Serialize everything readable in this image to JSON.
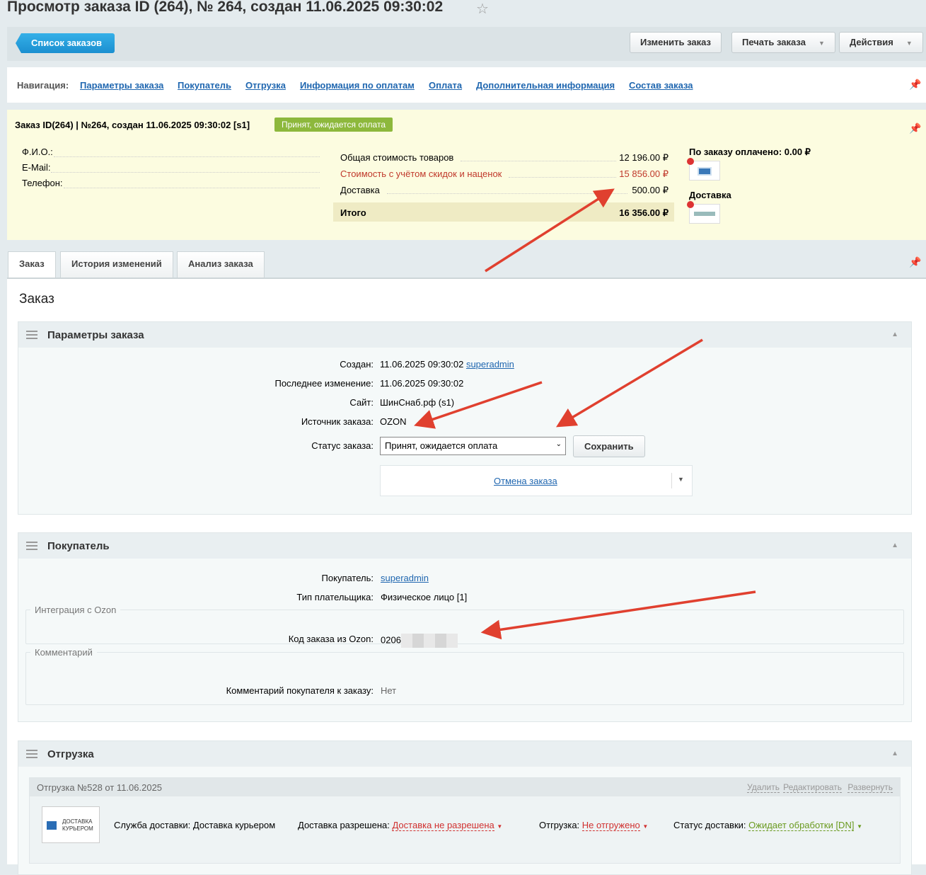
{
  "page": {
    "title": "Просмотр заказа ID (264), № 264, создан 11.06.2025 09:30:02"
  },
  "toolbar": {
    "back": "Список заказов",
    "edit": "Изменить заказ",
    "print": "Печать заказа",
    "actions": "Действия"
  },
  "nav": {
    "label": "Навигация:",
    "items": [
      "Параметры заказа",
      "Покупатель",
      "Отгрузка",
      "Информация по оплатам",
      "Оплата",
      "Дополнительная информация",
      "Состав заказа"
    ]
  },
  "summary": {
    "title": "Заказ ID(264) | №264, создан 11.06.2025 09:30:02 [s1]",
    "status": "Принят, ожидается оплата",
    "fields": [
      "Ф.И.О.:",
      "E-Mail:",
      "Телефон:"
    ],
    "totals": [
      {
        "label": "Общая стоимость товаров",
        "value": "12 196.00 ₽"
      },
      {
        "label": "Стоимость с учётом скидок и наценок",
        "value": "15 856.00 ₽"
      },
      {
        "label": "Доставка",
        "value": "500.00 ₽"
      },
      {
        "label": "Итого",
        "value": "16 356.00 ₽"
      }
    ],
    "paid": "По заказу оплачено: 0.00 ₽",
    "delivery": "Доставка"
  },
  "tabs": [
    "Заказ",
    "История изменений",
    "Анализ заказа"
  ],
  "main": {
    "heading": "Заказ"
  },
  "params": {
    "title": "Параметры заказа",
    "created_label": "Создан:",
    "created": "11.06.2025 09:30:02",
    "created_by": "superadmin",
    "modified_label": "Последнее изменение:",
    "modified": "11.06.2025 09:30:02",
    "site_label": "Сайт:",
    "site": "ШинСнаб.рф (s1)",
    "source_label": "Источник заказа:",
    "source": "OZON",
    "status_label": "Статус заказа:",
    "status": "Принят, ожидается оплата",
    "save": "Сохранить",
    "cancel": "Отмена заказа"
  },
  "buyer": {
    "title": "Покупатель",
    "buyer_label": "Покупатель:",
    "buyer": "superadmin",
    "payer_label": "Тип плательщика:",
    "payer": "Физическое лицо [1]",
    "ozon_legend": "Интеграция с Ozon",
    "ozon_label": "Код заказа из Ozon:",
    "ozon_code": "0206",
    "comment_legend": "Комментарий",
    "comment_label": "Комментарий покупателя к заказу:",
    "comment": "Нет"
  },
  "shipment": {
    "title": "Отгрузка",
    "header": "Отгрузка №528 от 11.06.2025",
    "actions": [
      "Удалить",
      "Редактировать",
      "Развернуть"
    ],
    "logo": [
      "ДОСТАВКА",
      "КУРЬЕРОМ"
    ],
    "service": "Служба доставки: Доставка курьером",
    "allowed_label": "Доставка разрешена:",
    "allowed": "Доставка не разрешена",
    "shipped_label": "Отгрузка:",
    "shipped": "Не отгружено",
    "dstatus_label": "Статус доставки:",
    "dstatus": "Ожидает обработки [DN]"
  },
  "colors": {
    "accent": "#2067b0",
    "badge": "#8db83c",
    "red": "#d0302f",
    "green": "#6a9a1f",
    "arrow": "#e0402f"
  }
}
